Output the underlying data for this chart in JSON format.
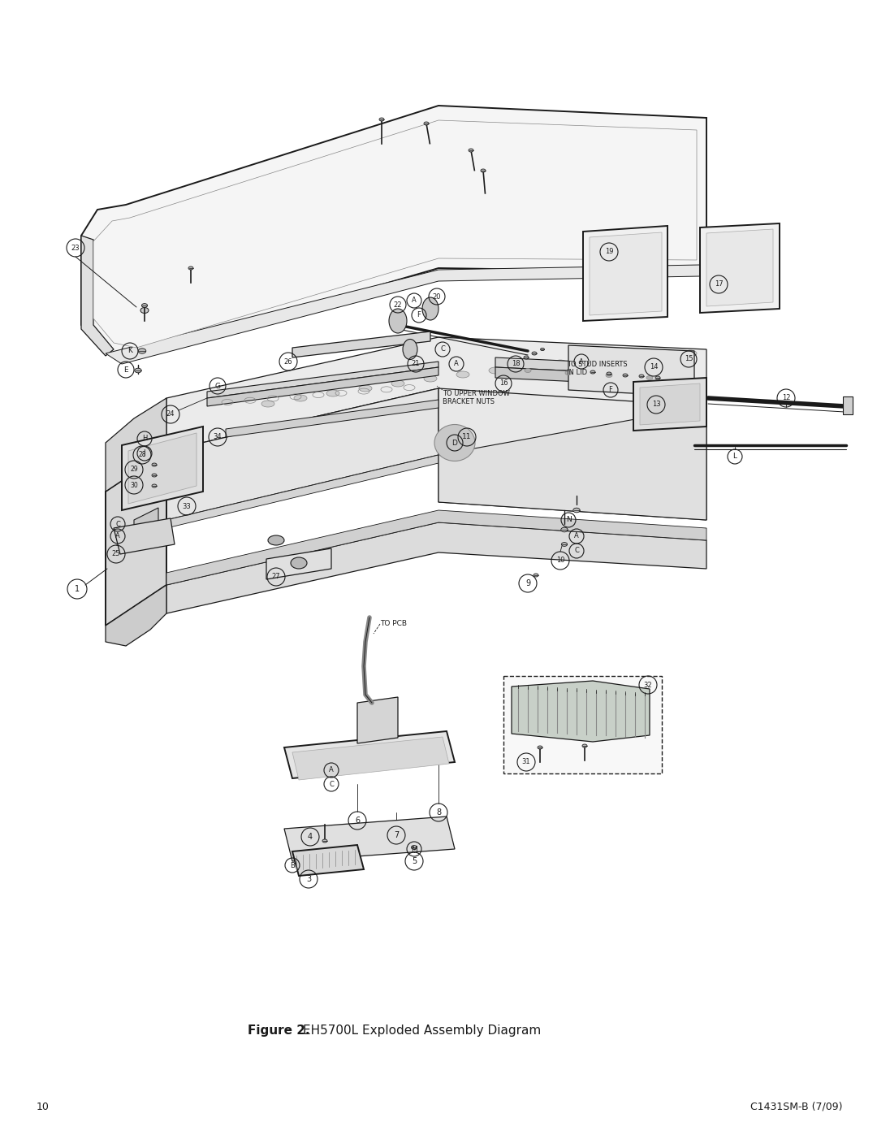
{
  "title_bold": "Figure 2.",
  "subtitle": "  EH5700L Exploded Assembly Diagram",
  "page_number": "10",
  "page_right": "C1431SM-B (7/09)",
  "background_color": "#ffffff",
  "line_color": "#1a1a1a",
  "text_color": "#1a1a1a",
  "figure_width": 10.8,
  "figure_height": 13.97,
  "dpi": 100
}
